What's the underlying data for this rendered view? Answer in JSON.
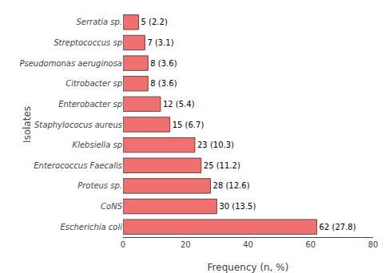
{
  "chart_data": {
    "type": "bar",
    "orientation": "horizontal",
    "categories": [
      "Escherichia coli",
      "CoNS",
      "Proteus sp.",
      "Enterococcus Faecalis",
      "Klebsiella sp",
      "Staphylococus aureus",
      "Enterobacter sp",
      "Citrobacter sp",
      "Pseudomonas aeruginosa",
      "Streptococcus sp",
      "Serratia sp."
    ],
    "values": [
      62,
      30,
      28,
      25,
      23,
      15,
      12,
      8,
      8,
      7,
      5
    ],
    "value_labels": [
      "62 (27.8)",
      "30 (13.5)",
      "28 (12.6)",
      "25 (11.2)",
      "23 (10.3)",
      "15 (6.7)",
      "12 (5.4)",
      "8 (3.6)",
      "8 (3.6)",
      "7 (3.1)",
      "5 (2.2)"
    ],
    "data_labels": true,
    "color": "#F07070",
    "xlabel": "Frequency (n, %)",
    "ylabel": "Isolates",
    "xlim": [
      0,
      80
    ],
    "xticks": [
      0,
      20,
      40,
      60,
      80
    ],
    "grid": false
  }
}
